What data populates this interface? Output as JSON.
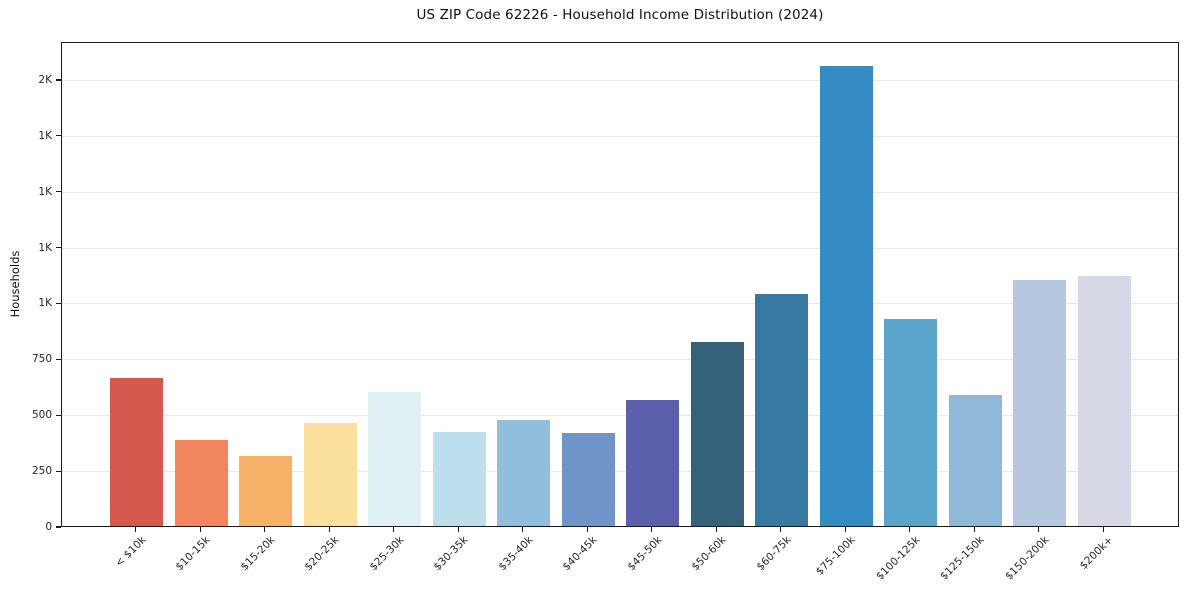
{
  "chart_data": {
    "type": "bar",
    "title": "US ZIP Code 62226 - Household Income Distribution (2024)",
    "xlabel": "",
    "ylabel": "Households",
    "categories": [
      "< $10k",
      "$10-15k",
      "$15-20k",
      "$20-25k",
      "$25-30k",
      "$30-35k",
      "$35-40k",
      "$40-45k",
      "$45-50k",
      "$50-60k",
      "$60-75k",
      "$75-100k",
      "$100-125k",
      "$125-150k",
      "$150-200k",
      "$200k+"
    ],
    "values": [
      661,
      386,
      314,
      462,
      600,
      420,
      473,
      414,
      562,
      824,
      1037,
      2057,
      925,
      586,
      1102,
      1119
    ],
    "bar_colors": [
      "#d5584f",
      "#f2875f",
      "#f8b268",
      "#fbdf9d",
      "#e1f0f3",
      "#bcdeed",
      "#92bedd",
      "#6e94c8",
      "#5c5fab",
      "#36617b",
      "#3579a0",
      "#348bc1",
      "#5ca5ca",
      "#8fb9d6",
      "#b6c8df",
      "#d7d8e6"
    ],
    "ylim": [
      0,
      2170
    ],
    "yticks": [
      {
        "value": 0,
        "label": "0"
      },
      {
        "value": 250,
        "label": "250"
      },
      {
        "value": 500,
        "label": "500"
      },
      {
        "value": 750,
        "label": "750"
      },
      {
        "value": 1000,
        "label": "1K"
      },
      {
        "value": 1250,
        "label": "1K"
      },
      {
        "value": 1500,
        "label": "1K"
      },
      {
        "value": 1750,
        "label": "1K"
      },
      {
        "value": 2000,
        "label": "2K"
      }
    ],
    "grid": "horizontal",
    "legend": "none"
  },
  "colors": {
    "background": "#ffffff",
    "grid": "#e9e9ed",
    "spine": "#1a1a1a",
    "text": "#262626"
  }
}
